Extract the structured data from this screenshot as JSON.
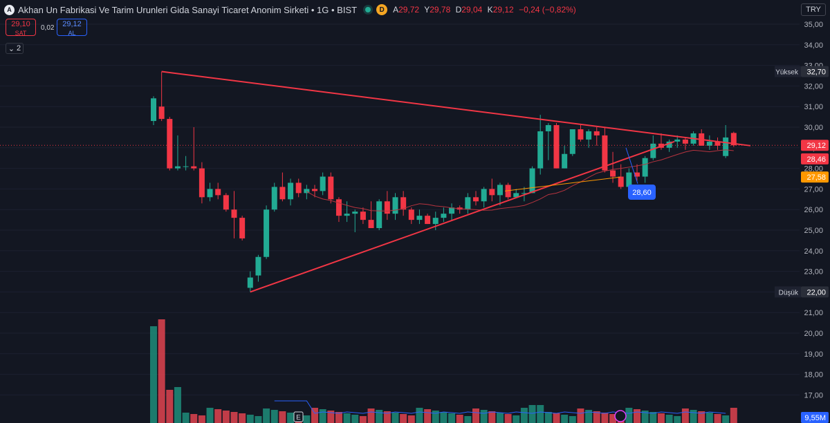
{
  "header": {
    "title": "Akhan Un Fabrikasi Ve Tarim Urunleri Gida Sanayi Ticaret Anonim Sirketi • 1G • BIST",
    "interval_badge": "D",
    "ohlc": [
      {
        "k": "A",
        "v": "29,72"
      },
      {
        "k": "Y",
        "v": "29,78"
      },
      {
        "k": "D",
        "v": "29,04"
      },
      {
        "k": "K",
        "v": "29,12"
      }
    ],
    "change": "−0,24 (−0,82%)"
  },
  "quote": {
    "sell_price": "29,10",
    "sell_label": "SAT",
    "spread": "0,02",
    "buy_price": "29,12",
    "buy_label": "AL"
  },
  "indicator_count": "2",
  "currency": "TRY",
  "colors": {
    "up": "#22ab94",
    "down": "#f23645",
    "ma": "#ff9800",
    "trend": "#f23645"
  },
  "chart_data": {
    "type": "candlestick",
    "ylim": [
      16.5,
      35.4
    ],
    "yticks": [
      "35,00",
      "34,00",
      "33,00",
      "32,00",
      "31,00",
      "30,00",
      "29,00",
      "28,00",
      "27,00",
      "26,00",
      "25,00",
      "24,00",
      "23,00",
      "22,00",
      "21,00",
      "20,00",
      "19,00",
      "18,00",
      "17,00"
    ],
    "candles": [
      [
        30.3,
        31.5,
        30.1,
        31.4
      ],
      [
        31.0,
        32.7,
        30.3,
        30.4
      ],
      [
        30.4,
        30.5,
        27.9,
        28.0
      ],
      [
        28.0,
        29.6,
        27.9,
        28.1
      ],
      [
        28.1,
        28.6,
        27.9,
        28.1
      ],
      [
        28.1,
        30.0,
        27.9,
        28.0
      ],
      [
        28.0,
        28.3,
        26.3,
        26.6
      ],
      [
        26.6,
        27.3,
        26.4,
        27.0
      ],
      [
        27.0,
        27.3,
        26.5,
        26.7
      ],
      [
        26.7,
        26.8,
        25.9,
        26.0
      ],
      [
        26.0,
        26.9,
        24.6,
        25.6
      ],
      [
        25.6,
        25.7,
        24.5,
        24.6
      ],
      [
        22.2,
        23.0,
        22.0,
        22.7
      ],
      [
        22.8,
        23.8,
        22.5,
        23.7
      ],
      [
        23.7,
        26.2,
        23.6,
        26.0
      ],
      [
        26.0,
        27.3,
        25.9,
        27.1
      ],
      [
        27.1,
        27.8,
        26.4,
        26.5
      ],
      [
        26.5,
        27.5,
        26.2,
        27.3
      ],
      [
        27.3,
        27.5,
        26.6,
        26.8
      ],
      [
        26.8,
        27.2,
        26.5,
        27.0
      ],
      [
        27.0,
        27.2,
        26.6,
        26.9
      ],
      [
        26.9,
        27.8,
        26.7,
        27.6
      ],
      [
        27.6,
        27.8,
        26.3,
        26.5
      ],
      [
        26.5,
        26.6,
        25.4,
        25.7
      ],
      [
        25.7,
        26.4,
        25.4,
        25.8
      ],
      [
        25.8,
        26.0,
        24.9,
        25.9
      ],
      [
        25.9,
        26.1,
        25.3,
        25.5
      ],
      [
        25.5,
        26.4,
        25.1,
        25.1
      ],
      [
        25.1,
        26.5,
        25.0,
        26.4
      ],
      [
        26.4,
        26.9,
        25.5,
        25.8
      ],
      [
        25.8,
        26.8,
        25.5,
        26.6
      ],
      [
        26.6,
        26.9,
        25.7,
        26.0
      ],
      [
        26.0,
        26.1,
        25.3,
        25.5
      ],
      [
        25.5,
        26.0,
        25.3,
        25.7
      ],
      [
        25.7,
        25.8,
        25.3,
        25.3
      ],
      [
        25.3,
        25.9,
        25.0,
        25.6
      ],
      [
        25.6,
        26.1,
        25.4,
        25.8
      ],
      [
        25.8,
        26.3,
        25.5,
        26.1
      ],
      [
        26.1,
        26.2,
        25.8,
        26.0
      ],
      [
        26.0,
        26.8,
        25.8,
        26.6
      ],
      [
        26.6,
        26.9,
        26.2,
        26.4
      ],
      [
        26.4,
        27.1,
        26.1,
        27.0
      ],
      [
        27.0,
        27.5,
        26.4,
        26.7
      ],
      [
        26.7,
        27.3,
        26.2,
        27.2
      ],
      [
        27.2,
        27.3,
        26.5,
        26.6
      ],
      [
        26.6,
        27.0,
        26.6,
        26.8
      ],
      [
        26.8,
        27.1,
        26.4,
        26.8
      ],
      [
        26.8,
        28.1,
        26.8,
        28.0
      ],
      [
        28.0,
        30.6,
        27.7,
        29.8
      ],
      [
        29.8,
        30.2,
        28.4,
        30.1
      ],
      [
        30.1,
        30.2,
        28.0,
        28.0
      ],
      [
        28.0,
        29.1,
        28.0,
        28.7
      ],
      [
        28.7,
        29.9,
        28.6,
        29.9
      ],
      [
        29.9,
        30.1,
        29.3,
        29.4
      ],
      [
        29.4,
        29.9,
        29.0,
        29.8
      ],
      [
        29.8,
        30.0,
        29.1,
        29.6
      ],
      [
        29.6,
        30.0,
        27.8,
        27.9
      ],
      [
        27.9,
        28.8,
        27.3,
        27.6
      ],
      [
        27.6,
        28.2,
        27.0,
        27.1
      ],
      [
        27.1,
        28.0,
        27.0,
        27.8
      ],
      [
        27.8,
        28.2,
        27.4,
        27.6
      ],
      [
        27.6,
        28.6,
        27.3,
        28.5
      ],
      [
        28.5,
        29.6,
        28.4,
        29.2
      ],
      [
        29.2,
        29.7,
        28.9,
        29.0
      ],
      [
        29.0,
        29.4,
        28.8,
        29.3
      ],
      [
        29.3,
        29.6,
        29.0,
        29.4
      ],
      [
        29.4,
        29.5,
        28.9,
        29.2
      ],
      [
        29.2,
        29.8,
        29.1,
        29.7
      ],
      [
        29.7,
        29.9,
        29.1,
        29.1
      ],
      [
        29.1,
        29.6,
        28.9,
        29.3
      ],
      [
        29.3,
        29.5,
        28.9,
        29.1
      ],
      [
        28.6,
        30.1,
        28.5,
        29.5
      ],
      [
        29.72,
        29.78,
        29.04,
        29.12
      ]
    ],
    "volume_max_label": "9,55M",
    "markers": {
      "earnings": "E"
    },
    "price_labels": [
      {
        "text": "Yüksek",
        "value": "32,70",
        "price": 32.7
      },
      {
        "text": "",
        "value": "29,12",
        "price": 29.12
      },
      {
        "text": "",
        "value": "28,46",
        "price": 28.46
      },
      {
        "text": "",
        "value": "27,58",
        "price": 27.58
      },
      {
        "text": "Düşük",
        "value": "22,00",
        "price": 22.0
      }
    ],
    "callout": {
      "value": "28,60",
      "price": 28.6
    }
  }
}
